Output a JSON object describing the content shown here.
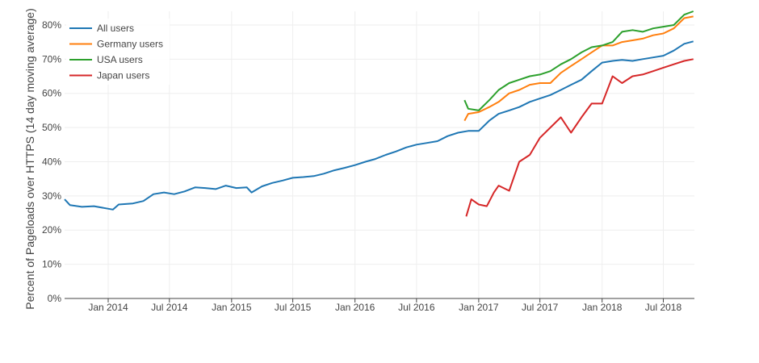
{
  "chart_data": {
    "type": "line",
    "title": "",
    "xlabel": "",
    "ylabel": "Percent of Pageloads over HTTPS (14 day moving average)",
    "x_tick_labels": [
      "Jan 2014",
      "Jul 2014",
      "Jan 2015",
      "Jul 2015",
      "Jan 2016",
      "Jul 2016",
      "Jan 2017",
      "Jul 2017",
      "Jan 2018",
      "Jul 2018"
    ],
    "y_tick_labels": [
      "0%",
      "10%",
      "20%",
      "30%",
      "40%",
      "50%",
      "60%",
      "70%",
      "80%"
    ],
    "ylim": [
      0,
      84
    ],
    "xlim": [
      "2013-08-25",
      "2018-10-01"
    ],
    "grid": true,
    "legend_position": "top-left",
    "series": [
      {
        "name": "All users",
        "color": "#1f77b4",
        "points": [
          [
            "2013-08-25",
            29
          ],
          [
            "2013-09-10",
            27.3
          ],
          [
            "2013-10-15",
            26.8
          ],
          [
            "2013-11-20",
            27
          ],
          [
            "2014-01-15",
            26
          ],
          [
            "2014-02-01",
            27.5
          ],
          [
            "2014-03-15",
            27.8
          ],
          [
            "2014-04-15",
            28.5
          ],
          [
            "2014-05-15",
            30.5
          ],
          [
            "2014-06-15",
            31
          ],
          [
            "2014-07-15",
            30.5
          ],
          [
            "2014-08-15",
            31.3
          ],
          [
            "2014-09-15",
            32.5
          ],
          [
            "2014-10-15",
            32.3
          ],
          [
            "2014-11-15",
            32
          ],
          [
            "2014-12-15",
            33
          ],
          [
            "2015-01-15",
            32.3
          ],
          [
            "2015-02-15",
            32.5
          ],
          [
            "2015-03-01",
            31
          ],
          [
            "2015-04-01",
            32.8
          ],
          [
            "2015-05-01",
            33.8
          ],
          [
            "2015-06-01",
            34.5
          ],
          [
            "2015-07-01",
            35.3
          ],
          [
            "2015-08-01",
            35.5
          ],
          [
            "2015-09-01",
            35.8
          ],
          [
            "2015-10-01",
            36.5
          ],
          [
            "2015-11-01",
            37.5
          ],
          [
            "2015-12-01",
            38.2
          ],
          [
            "2016-01-01",
            39
          ],
          [
            "2016-02-01",
            40
          ],
          [
            "2016-03-01",
            40.8
          ],
          [
            "2016-04-01",
            42
          ],
          [
            "2016-05-01",
            43
          ],
          [
            "2016-06-01",
            44.2
          ],
          [
            "2016-07-01",
            45
          ],
          [
            "2016-08-01",
            45.5
          ],
          [
            "2016-09-01",
            46
          ],
          [
            "2016-10-01",
            47.5
          ],
          [
            "2016-11-01",
            48.5
          ],
          [
            "2016-12-01",
            49
          ],
          [
            "2017-01-01",
            49
          ],
          [
            "2017-02-01",
            52
          ],
          [
            "2017-03-01",
            54
          ],
          [
            "2017-04-01",
            55
          ],
          [
            "2017-05-01",
            56
          ],
          [
            "2017-06-01",
            57.5
          ],
          [
            "2017-07-01",
            58.5
          ],
          [
            "2017-08-01",
            59.5
          ],
          [
            "2017-09-01",
            61
          ],
          [
            "2017-10-01",
            62.5
          ],
          [
            "2017-11-01",
            64
          ],
          [
            "2017-12-01",
            66.5
          ],
          [
            "2018-01-01",
            69
          ],
          [
            "2018-02-01",
            69.5
          ],
          [
            "2018-03-01",
            69.8
          ],
          [
            "2018-04-01",
            69.5
          ],
          [
            "2018-05-01",
            70
          ],
          [
            "2018-06-01",
            70.5
          ],
          [
            "2018-07-01",
            71
          ],
          [
            "2018-08-01",
            72.5
          ],
          [
            "2018-09-01",
            74.5
          ],
          [
            "2018-09-28",
            75.2
          ]
        ]
      },
      {
        "name": "Germany users",
        "color": "#ff7f0e",
        "points": [
          [
            "2016-11-20",
            52
          ],
          [
            "2016-12-01",
            54
          ],
          [
            "2017-01-01",
            54.5
          ],
          [
            "2017-02-01",
            56
          ],
          [
            "2017-03-01",
            57.5
          ],
          [
            "2017-04-01",
            60
          ],
          [
            "2017-05-01",
            61
          ],
          [
            "2017-06-01",
            62.5
          ],
          [
            "2017-07-01",
            63
          ],
          [
            "2017-08-01",
            63
          ],
          [
            "2017-09-01",
            66
          ],
          [
            "2017-10-01",
            68
          ],
          [
            "2017-11-01",
            70
          ],
          [
            "2017-12-01",
            72
          ],
          [
            "2018-01-01",
            74
          ],
          [
            "2018-02-01",
            74
          ],
          [
            "2018-03-01",
            75
          ],
          [
            "2018-04-01",
            75.5
          ],
          [
            "2018-05-01",
            76
          ],
          [
            "2018-06-01",
            77
          ],
          [
            "2018-07-01",
            77.5
          ],
          [
            "2018-08-01",
            79
          ],
          [
            "2018-09-01",
            82
          ],
          [
            "2018-09-28",
            82.5
          ]
        ]
      },
      {
        "name": "USA users",
        "color": "#2ca02c",
        "points": [
          [
            "2016-11-20",
            58
          ],
          [
            "2016-12-01",
            55.5
          ],
          [
            "2017-01-01",
            55
          ],
          [
            "2017-02-01",
            58
          ],
          [
            "2017-03-01",
            61
          ],
          [
            "2017-04-01",
            63
          ],
          [
            "2017-05-01",
            64
          ],
          [
            "2017-06-01",
            65
          ],
          [
            "2017-07-01",
            65.5
          ],
          [
            "2017-08-01",
            66.5
          ],
          [
            "2017-09-01",
            68.5
          ],
          [
            "2017-10-01",
            70
          ],
          [
            "2017-11-01",
            72
          ],
          [
            "2017-12-01",
            73.5
          ],
          [
            "2018-01-01",
            74
          ],
          [
            "2018-02-01",
            75
          ],
          [
            "2018-03-01",
            78
          ],
          [
            "2018-04-01",
            78.5
          ],
          [
            "2018-05-01",
            78
          ],
          [
            "2018-06-01",
            79
          ],
          [
            "2018-07-01",
            79.5
          ],
          [
            "2018-08-01",
            80
          ],
          [
            "2018-09-01",
            83
          ],
          [
            "2018-09-28",
            84
          ]
        ]
      },
      {
        "name": "Japan users",
        "color": "#d62728",
        "points": [
          [
            "2016-11-25",
            24
          ],
          [
            "2016-12-10",
            29
          ],
          [
            "2017-01-01",
            27.5
          ],
          [
            "2017-01-25",
            27
          ],
          [
            "2017-02-15",
            31
          ],
          [
            "2017-03-01",
            33
          ],
          [
            "2017-04-01",
            31.5
          ],
          [
            "2017-05-01",
            40
          ],
          [
            "2017-06-01",
            42
          ],
          [
            "2017-07-01",
            47
          ],
          [
            "2017-08-01",
            50
          ],
          [
            "2017-09-01",
            53
          ],
          [
            "2017-10-01",
            48.5
          ],
          [
            "2017-11-01",
            53
          ],
          [
            "2017-12-01",
            57
          ],
          [
            "2018-01-01",
            57
          ],
          [
            "2018-02-01",
            65
          ],
          [
            "2018-03-01",
            63
          ],
          [
            "2018-04-01",
            65
          ],
          [
            "2018-05-01",
            65.5
          ],
          [
            "2018-06-01",
            66.5
          ],
          [
            "2018-07-01",
            67.5
          ],
          [
            "2018-08-01",
            68.5
          ],
          [
            "2018-09-01",
            69.5
          ],
          [
            "2018-09-28",
            70
          ]
        ]
      }
    ]
  }
}
